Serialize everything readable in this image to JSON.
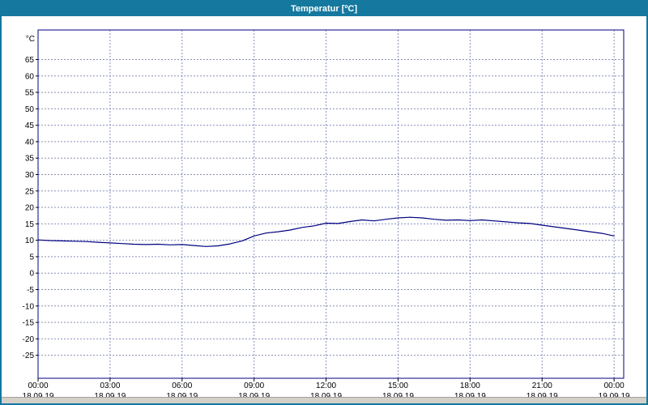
{
  "window": {
    "title": "Temperatur [ºC]"
  },
  "colors": {
    "titlebar": "#15789e",
    "window_border": "#15789e",
    "plot_border": "#000080",
    "grid": "#8890bb",
    "line": "#000080",
    "tick_text": "#000000",
    "background": "#ffffff",
    "statusbar_bg": "#d4d0c8"
  },
  "chart_data": {
    "type": "line",
    "title": "Temperatur [ºC]",
    "xlabel": "",
    "ylabel": "°C",
    "xlim_hours": [
      0,
      24.4
    ],
    "ylim": [
      -32,
      74
    ],
    "grid": "dashed",
    "legend": "none",
    "y_ticks": [
      65,
      60,
      55,
      50,
      45,
      40,
      35,
      30,
      25,
      20,
      15,
      10,
      5,
      0,
      -5,
      -10,
      -15,
      -20,
      -25
    ],
    "x_ticks": [
      {
        "hour": 0,
        "time": "00:00",
        "date": "18.09.19"
      },
      {
        "hour": 3,
        "time": "03:00",
        "date": "18.09.19"
      },
      {
        "hour": 6,
        "time": "06:00",
        "date": "18.09.19"
      },
      {
        "hour": 9,
        "time": "09:00",
        "date": "18.09.19"
      },
      {
        "hour": 12,
        "time": "12:00",
        "date": "18.09.19"
      },
      {
        "hour": 15,
        "time": "15:00",
        "date": "18.09.19"
      },
      {
        "hour": 18,
        "time": "18:00",
        "date": "18.09.19"
      },
      {
        "hour": 21,
        "time": "21:00",
        "date": "18.09.19"
      },
      {
        "hour": 24,
        "time": "00:00",
        "date": "19.09.19"
      }
    ],
    "series": [
      {
        "name": "Temperatur",
        "color": "#000080",
        "x": [
          0,
          0.5,
          1,
          1.5,
          2,
          2.5,
          3,
          3.5,
          4,
          4.5,
          5,
          5.5,
          6,
          6.5,
          7,
          7.5,
          8,
          8.5,
          9,
          9.5,
          10,
          10.5,
          11,
          11.5,
          12,
          12.5,
          13,
          13.5,
          14,
          14.5,
          15,
          15.5,
          16,
          16.5,
          17,
          17.5,
          18,
          18.5,
          19,
          19.5,
          20,
          20.5,
          21,
          21.5,
          22,
          22.5,
          23,
          23.5,
          24
        ],
        "values": [
          10.1,
          9.9,
          9.8,
          9.7,
          9.6,
          9.4,
          9.2,
          9.0,
          8.8,
          8.7,
          8.8,
          8.6,
          8.7,
          8.4,
          8.1,
          8.3,
          8.9,
          9.8,
          11.3,
          12.2,
          12.6,
          13.1,
          13.9,
          14.4,
          15.2,
          15.1,
          15.7,
          16.2,
          15.9,
          16.4,
          16.8,
          17.0,
          16.8,
          16.4,
          16.1,
          16.2,
          16.0,
          16.2,
          15.9,
          15.6,
          15.3,
          15.1,
          14.6,
          14.1,
          13.6,
          13.1,
          12.6,
          12.1,
          11.3
        ]
      }
    ]
  }
}
